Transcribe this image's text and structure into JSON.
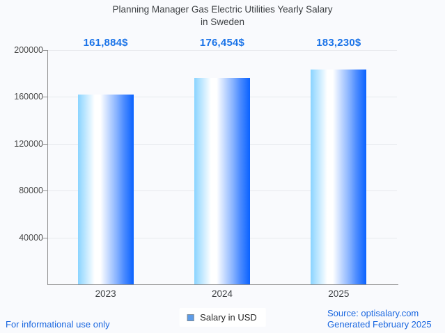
{
  "title": {
    "line1": "Planning Manager Gas Electric Utilities Yearly Salary",
    "line2": "in Sweden"
  },
  "chart_data": {
    "type": "bar",
    "title": "Planning Manager Gas Electric Utilities Yearly Salary in Sweden",
    "categories": [
      "2023",
      "2024",
      "2025"
    ],
    "series": [
      {
        "name": "Salary in USD",
        "values": [
          161884,
          176454,
          183230
        ]
      }
    ],
    "value_labels": [
      "161,884$",
      "176,454$",
      "183,230$"
    ],
    "xlabel": "",
    "ylabel": "",
    "ylim": [
      0,
      200000
    ],
    "yticks": [
      40000,
      80000,
      120000,
      160000,
      200000
    ],
    "ytick_labels": [
      "40000",
      "80000",
      "120000",
      "160000",
      "200000"
    ],
    "grid": true,
    "legend_position": "bottom"
  },
  "legend": {
    "label": "Salary in USD"
  },
  "footer": {
    "left_note": "For informational use only",
    "source_line1": "Source: optisalary.com",
    "source_line2": "Generated February 2025"
  },
  "colors": {
    "background": "#f9fafd",
    "accent_blue": "#1a73e8",
    "footer_blue": "#1a67e0",
    "title_text": "#3d4043",
    "axis_text": "#4a4a4a",
    "gridline": "#e7e9ed",
    "axis_line": "#8f8f8f",
    "bar_gradient_left": "#8ad4ff",
    "bar_gradient_mid": "#ffffff",
    "bar_gradient_right": "#0a62ff",
    "legend_swatch_fill": "#5d9ce8",
    "legend_swatch_border": "#7d8b96"
  }
}
